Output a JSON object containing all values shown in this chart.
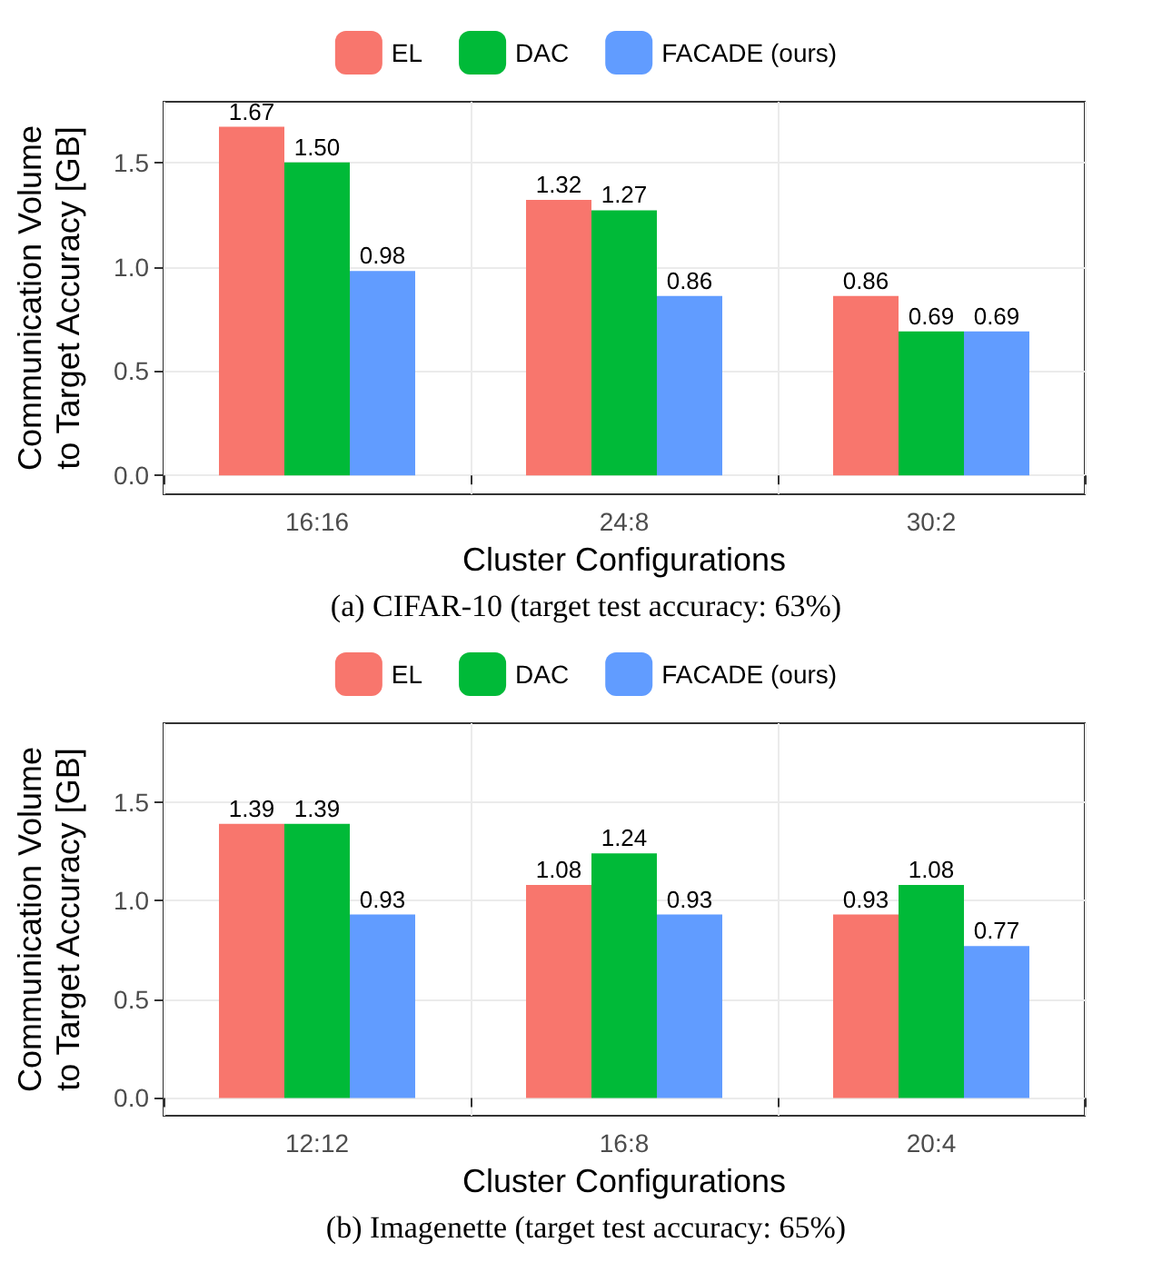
{
  "chart_data": [
    {
      "type": "bar",
      "xlabel": "Cluster Configurations",
      "ylabel": "Communication Volume\nto Target Accuracy [GB]",
      "annotations": [
        "(a) CIFAR-10 (target test accuracy: 63%)"
      ],
      "categories": [
        "16:16",
        "24:8",
        "30:2"
      ],
      "legend": "top",
      "grid": true,
      "ylim": [
        -0.09,
        1.79
      ],
      "yticks": [
        {
          "value": 0,
          "label": "0.0"
        },
        {
          "value": 0.5,
          "label": "0.5"
        },
        {
          "value": 1,
          "label": "1.0"
        },
        {
          "value": 1.5,
          "label": "1.5"
        }
      ],
      "series": [
        {
          "name": "EL",
          "color": "#f8766d",
          "values": [
            1.67,
            1.32,
            0.86
          ],
          "value_labels": [
            "1.67",
            "1.32",
            "0.86"
          ]
        },
        {
          "name": "DAC",
          "color": "#00ba38",
          "values": [
            1.5,
            1.27,
            0.69
          ],
          "value_labels": [
            "1.50",
            "1.27",
            "0.69"
          ]
        },
        {
          "name": "FACADE (ours)",
          "color": "#619cff",
          "values": [
            0.98,
            0.86,
            0.69
          ],
          "value_labels": [
            "0.98",
            "0.86",
            "0.69"
          ]
        }
      ]
    },
    {
      "type": "bar",
      "xlabel": "Cluster Configurations",
      "ylabel": "Communication Volume\nto Target Accuracy [GB]",
      "annotations": [
        "(b) Imagenette (target test accuracy: 65%)"
      ],
      "categories": [
        "12:12",
        "16:8",
        "20:4"
      ],
      "legend": "top",
      "grid": true,
      "ylim": [
        -0.09,
        1.9
      ],
      "yticks": [
        {
          "value": 0,
          "label": "0.0"
        },
        {
          "value": 0.5,
          "label": "0.5"
        },
        {
          "value": 1,
          "label": "1.0"
        },
        {
          "value": 1.5,
          "label": "1.5"
        }
      ],
      "series": [
        {
          "name": "EL",
          "color": "#f8766d",
          "values": [
            1.39,
            1.08,
            0.93
          ],
          "value_labels": [
            "1.39",
            "1.08",
            "0.93"
          ]
        },
        {
          "name": "DAC",
          "color": "#00ba38",
          "values": [
            1.39,
            1.24,
            1.08
          ],
          "value_labels": [
            "1.39",
            "1.24",
            "1.08"
          ]
        },
        {
          "name": "FACADE (ours)",
          "color": "#619cff",
          "values": [
            0.93,
            0.93,
            0.77
          ],
          "value_labels": [
            "0.93",
            "0.93",
            "0.77"
          ]
        }
      ]
    }
  ]
}
